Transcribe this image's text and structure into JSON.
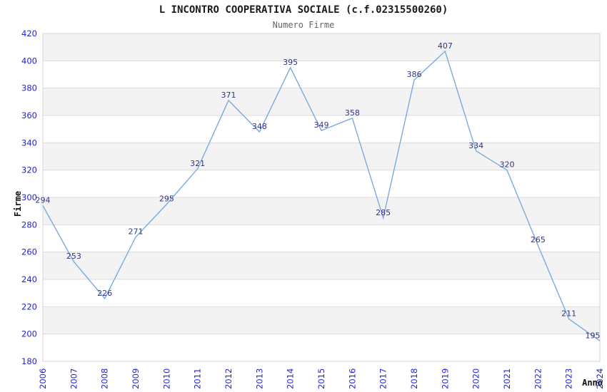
{
  "title": "L INCONTRO COOPERATIVA SOCIALE (c.f.02315500260)",
  "subtitle": "Numero Firme",
  "chart_data": {
    "type": "line",
    "title": "L INCONTRO COOPERATIVA SOCIALE (c.f.02315500260)",
    "subtitle": "Numero Firme",
    "xlabel": "Anno",
    "ylabel": "Firme",
    "categories": [
      2006,
      2007,
      2008,
      2009,
      2010,
      2011,
      2012,
      2013,
      2014,
      2015,
      2016,
      2017,
      2018,
      2019,
      2020,
      2021,
      2022,
      2023,
      2024
    ],
    "values": [
      294,
      253,
      226,
      271,
      295,
      321,
      371,
      348,
      395,
      349,
      358,
      285,
      386,
      407,
      334,
      320,
      265,
      211,
      195
    ],
    "ylim": [
      180,
      420
    ],
    "ytick_step": 20,
    "grid": true,
    "legend": "none",
    "band_fill_alternate": true,
    "data_labels": true,
    "colors": {
      "line": "#7aaade",
      "tick_label": "#2424cc",
      "data_label": "#333388",
      "band": "#f3f3f3",
      "gridline": "#dcdcdc",
      "border": "#d4d4d4",
      "title": "#1a1a1a",
      "subtitle": "#666666",
      "axis_title": "#111111"
    }
  }
}
